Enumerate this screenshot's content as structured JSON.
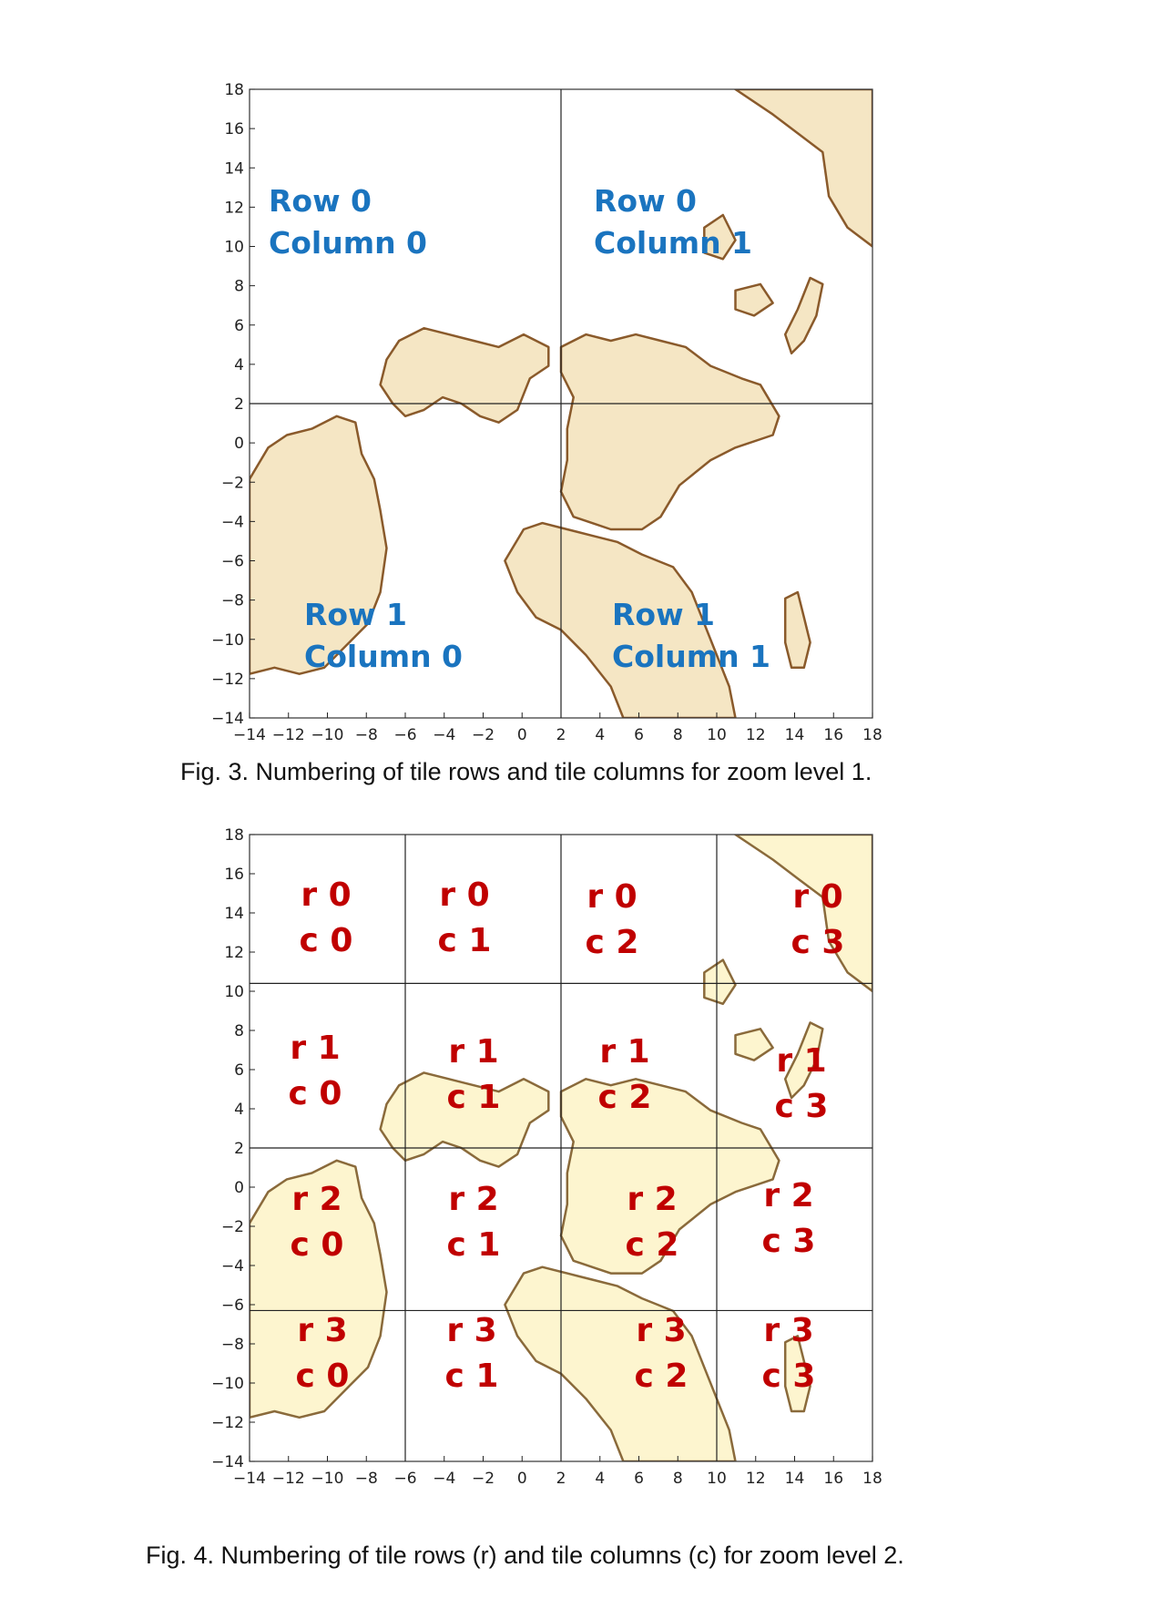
{
  "figures": [
    {
      "caption": "Fig. 3.  Numbering of tile rows and tile columns for zoom level 1.",
      "x_ticks": [
        "−14",
        "−12",
        "−10",
        "−8",
        "−6",
        "−4",
        "−2",
        "0",
        "2",
        "4",
        "6",
        "8",
        "10",
        "12",
        "14",
        "16",
        "18"
      ],
      "y_ticks": [
        "18",
        "16",
        "14",
        "12",
        "10",
        "8",
        "6",
        "4",
        "2",
        "0",
        "−2",
        "−4",
        "−6",
        "−8",
        "−10",
        "−12",
        "−14"
      ],
      "land_color": "#f5e6c4",
      "border_color": "#8a5a2b",
      "label_color": "#1a74bf",
      "tiles": [
        {
          "line1": "Row 0",
          "line2": "Column 0"
        },
        {
          "line1": "Row 0",
          "line2": "Column 1"
        },
        {
          "line1": "Row 1",
          "line2": "Column 0"
        },
        {
          "line1": "Row 1",
          "line2": "Column 1"
        }
      ]
    },
    {
      "caption": "Fig. 4.  Numbering of tile rows (r) and tile columns (c) for zoom level 2.",
      "x_ticks": [
        "−14",
        "−12",
        "−10",
        "−8",
        "−6",
        "−4",
        "−2",
        "0",
        "2",
        "4",
        "6",
        "8",
        "10",
        "12",
        "14",
        "16",
        "18"
      ],
      "y_ticks": [
        "18",
        "16",
        "14",
        "12",
        "10",
        "8",
        "6",
        "4",
        "2",
        "0",
        "−2",
        "−4",
        "−6",
        "−8",
        "−10",
        "−12",
        "−14"
      ],
      "land_color": "#fdf5cf",
      "border_color": "#8a6a3b",
      "label_color": "#c00000",
      "tiles": [
        {
          "line1": "r 0",
          "line2": "c 0"
        },
        {
          "line1": "r 0",
          "line2": "c 1"
        },
        {
          "line1": "r 0",
          "line2": "c 2"
        },
        {
          "line1": "r 0",
          "line2": "c 3"
        },
        {
          "line1": "r 1",
          "line2": "c 0"
        },
        {
          "line1": "r 1",
          "line2": "c 1"
        },
        {
          "line1": "r 1",
          "line2": "c 2"
        },
        {
          "line1": "r 1",
          "line2": "c 3"
        },
        {
          "line1": "r 2",
          "line2": "c 0"
        },
        {
          "line1": "r 2",
          "line2": "c 1"
        },
        {
          "line1": "r 2",
          "line2": "c 2"
        },
        {
          "line1": "r 2",
          "line2": "c 3"
        },
        {
          "line1": "r 3",
          "line2": "c 0"
        },
        {
          "line1": "r 3",
          "line2": "c 1"
        },
        {
          "line1": "r 3",
          "line2": "c 2"
        },
        {
          "line1": "r 3",
          "line2": "c 3"
        }
      ]
    }
  ]
}
